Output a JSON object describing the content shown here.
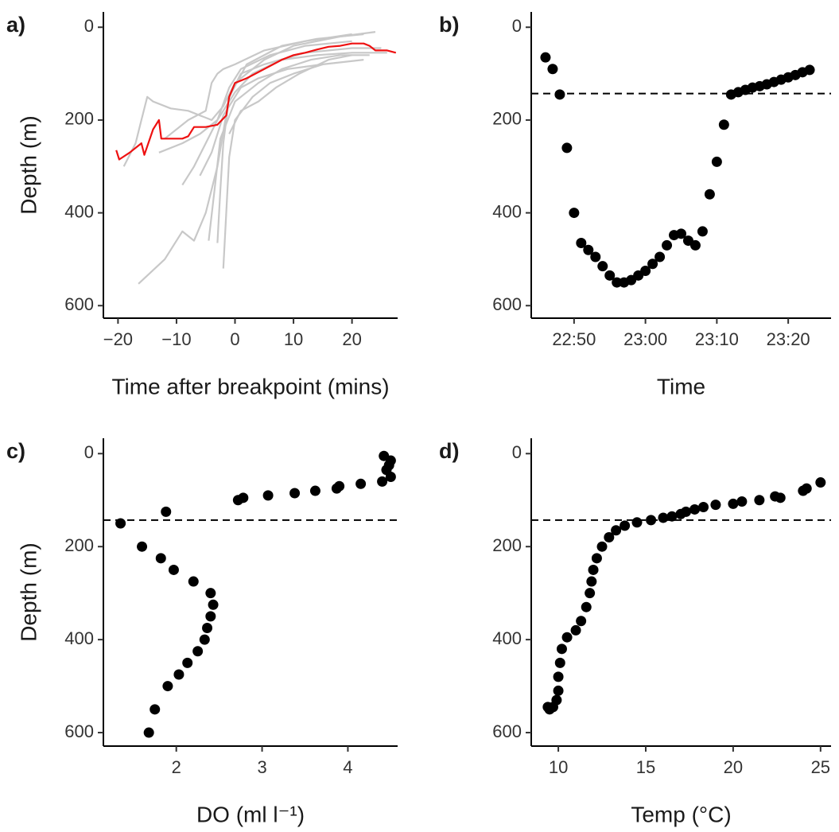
{
  "chart_data": [
    {
      "type": "line",
      "label": "a)",
      "xlabel": "Time after breakpoint (mins)",
      "ylabel": "Depth (m)",
      "xlim": [
        -22.5,
        27.8
      ],
      "ylim": [
        -33,
        627
      ],
      "y_inverted": true,
      "xticks": [
        {
          "value": -20,
          "label": "−20"
        },
        {
          "value": -10,
          "label": "−10"
        },
        0,
        10,
        20
      ],
      "yticks": [
        0,
        200,
        400,
        600
      ],
      "series": [
        {
          "color": "#c8c8c8",
          "x": [
            -16.5,
            -12,
            -9,
            -7,
            -5,
            -3,
            -1,
            2,
            8,
            14,
            22
          ],
          "values": [
            553,
            500,
            440,
            460,
            400,
            300,
            150,
            80,
            40,
            25,
            15
          ]
        },
        {
          "color": "#c8c8c8",
          "x": [
            -19,
            -17,
            -16,
            -15,
            -14,
            -11,
            -8,
            -4,
            -2,
            0,
            5,
            10,
            18,
            24
          ],
          "values": [
            300,
            250,
            200,
            150,
            160,
            175,
            180,
            200,
            170,
            120,
            70,
            40,
            20,
            10
          ]
        },
        {
          "color": "#c8c8c8",
          "x": [
            -13,
            -9,
            -6,
            -3,
            -1,
            1,
            6,
            12,
            20
          ],
          "values": [
            270,
            250,
            230,
            200,
            130,
            90,
            60,
            40,
            30
          ]
        },
        {
          "color": "#c8c8c8",
          "x": [
            -3,
            -2.5,
            -2,
            -1,
            1,
            5,
            12,
            20,
            25
          ],
          "values": [
            465,
            350,
            250,
            150,
            100,
            80,
            55,
            45,
            45
          ]
        },
        {
          "color": "#c8c8c8",
          "x": [
            -4.5,
            -3.5,
            -2.5,
            0,
            4,
            8,
            13,
            18,
            23
          ],
          "values": [
            460,
            350,
            240,
            160,
            120,
            90,
            70,
            60,
            60
          ]
        },
        {
          "color": "#c8c8c8",
          "x": [
            -12,
            -8,
            -5,
            -4,
            -3,
            -2,
            0,
            5,
            12,
            20
          ],
          "values": [
            240,
            200,
            180,
            120,
            100,
            90,
            80,
            50,
            30,
            15
          ]
        },
        {
          "color": "#c8c8c8",
          "x": [
            -2,
            -1.5,
            -1,
            0,
            3,
            6,
            10,
            15,
            22
          ],
          "values": [
            520,
            400,
            280,
            200,
            150,
            120,
            100,
            80,
            70
          ]
        },
        {
          "color": "#c8c8c8",
          "x": [
            -9,
            -7,
            -5,
            -3,
            0,
            3,
            8,
            14,
            20,
            26
          ],
          "values": [
            340,
            300,
            250,
            200,
            140,
            100,
            70,
            60,
            55,
            55
          ]
        },
        {
          "color": "#c8c8c8",
          "x": [
            -6,
            -4,
            -2,
            1,
            4,
            9,
            15
          ],
          "values": [
            320,
            270,
            190,
            130,
            110,
            90,
            80
          ]
        },
        {
          "color": "#c8c8c8",
          "x": [
            -1,
            1,
            4,
            7,
            11,
            16,
            20
          ],
          "values": [
            230,
            180,
            160,
            130,
            100,
            70,
            60
          ]
        },
        {
          "color": "#ee1111",
          "x": [
            -20.3,
            -19.8,
            -18,
            -16,
            -15.5,
            -14,
            -13,
            -12.6,
            -11,
            -9,
            -8,
            -7,
            -5,
            -3,
            -1.5,
            -1,
            0,
            2,
            5,
            8,
            10,
            12,
            14,
            16,
            18,
            20,
            22,
            23,
            24,
            26,
            27.5
          ],
          "values": [
            265,
            285,
            270,
            250,
            275,
            220,
            200,
            240,
            240,
            240,
            235,
            215,
            215,
            210,
            190,
            150,
            120,
            110,
            90,
            70,
            60,
            55,
            48,
            42,
            40,
            35,
            35,
            40,
            50,
            50,
            55
          ]
        }
      ]
    },
    {
      "type": "scatter",
      "label": "b)",
      "xlabel": "Time",
      "color": "#000000",
      "xlim": [
        "22:44",
        "23:26"
      ],
      "ylim": [
        -33,
        627
      ],
      "y_inverted": true,
      "hline": 143,
      "xticks": [
        "22:50",
        "23:00",
        "23:10",
        "23:20"
      ],
      "yticks": [
        0,
        200,
        400,
        600
      ],
      "x": [
        "22:46",
        "22:47",
        "22:48",
        "22:49",
        "22:50",
        "22:51",
        "22:52",
        "22:53",
        "22:54",
        "22:55",
        "22:56",
        "22:57",
        "22:58",
        "22:59",
        "23:00",
        "23:01",
        "23:02",
        "23:03",
        "23:04",
        "23:05",
        "23:06",
        "23:07",
        "23:08",
        "23:09",
        "23:10",
        "23:11",
        "23:12",
        "23:13",
        "23:14",
        "23:15",
        "23:16",
        "23:17",
        "23:18",
        "23:19",
        "23:20",
        "23:21",
        "23:22",
        "23:23"
      ],
      "values": [
        65,
        90,
        145,
        260,
        400,
        465,
        480,
        495,
        515,
        535,
        550,
        550,
        545,
        535,
        525,
        510,
        495,
        470,
        448,
        445,
        460,
        470,
        440,
        360,
        290,
        210,
        145,
        140,
        135,
        130,
        127,
        123,
        118,
        113,
        108,
        103,
        97,
        92
      ]
    },
    {
      "type": "scatter",
      "label": "c)",
      "xlabel": "DO (ml l⁻¹)",
      "ylabel": "Depth (m)",
      "color": "#000000",
      "xlim": [
        1.15,
        4.58
      ],
      "ylim": [
        -33,
        629
      ],
      "y_inverted": true,
      "hline": 143,
      "xticks": [
        2,
        3,
        4
      ],
      "yticks": [
        0,
        200,
        400,
        600
      ],
      "x": [
        4.42,
        4.5,
        4.48,
        4.45,
        4.5,
        4.4,
        4.15,
        3.9,
        3.87,
        3.62,
        3.38,
        3.07,
        2.78,
        2.72,
        1.88,
        1.35,
        1.6,
        1.82,
        1.97,
        2.2,
        2.4,
        2.43,
        2.4,
        2.36,
        2.33,
        2.25,
        2.13,
        2.03,
        1.9,
        1.75,
        1.68
      ],
      "values": [
        5,
        15,
        25,
        35,
        50,
        60,
        65,
        70,
        75,
        80,
        85,
        90,
        95,
        100,
        125,
        150,
        200,
        225,
        250,
        275,
        300,
        325,
        350,
        375,
        400,
        425,
        450,
        475,
        500,
        550,
        600
      ]
    },
    {
      "type": "scatter",
      "label": "d)",
      "xlabel": "Temp (°C)",
      "color": "#000000",
      "xlim": [
        8.45,
        25.6
      ],
      "ylim": [
        -33,
        629
      ],
      "y_inverted": true,
      "hline": 143,
      "xticks": [
        10,
        15,
        20,
        25
      ],
      "yticks": [
        0,
        200,
        400,
        600
      ],
      "x": [
        25,
        24.2,
        24,
        22.7,
        22.4,
        21.5,
        20.5,
        20,
        19,
        18.3,
        17.8,
        17.3,
        17,
        16.5,
        16,
        15.3,
        14.5,
        13.8,
        13.3,
        12.9,
        12.5,
        12.2,
        12,
        11.9,
        11.8,
        11.6,
        11.3,
        11,
        10.5,
        10.2,
        10.1,
        10,
        10,
        9.9,
        9.7,
        9.5,
        9.4
      ],
      "values": [
        62,
        75,
        80,
        95,
        92,
        100,
        103,
        108,
        110,
        115,
        120,
        125,
        130,
        135,
        138,
        143,
        148,
        155,
        165,
        180,
        200,
        225,
        250,
        275,
        300,
        330,
        360,
        380,
        395,
        420,
        450,
        480,
        510,
        530,
        545,
        550,
        545
      ]
    }
  ]
}
